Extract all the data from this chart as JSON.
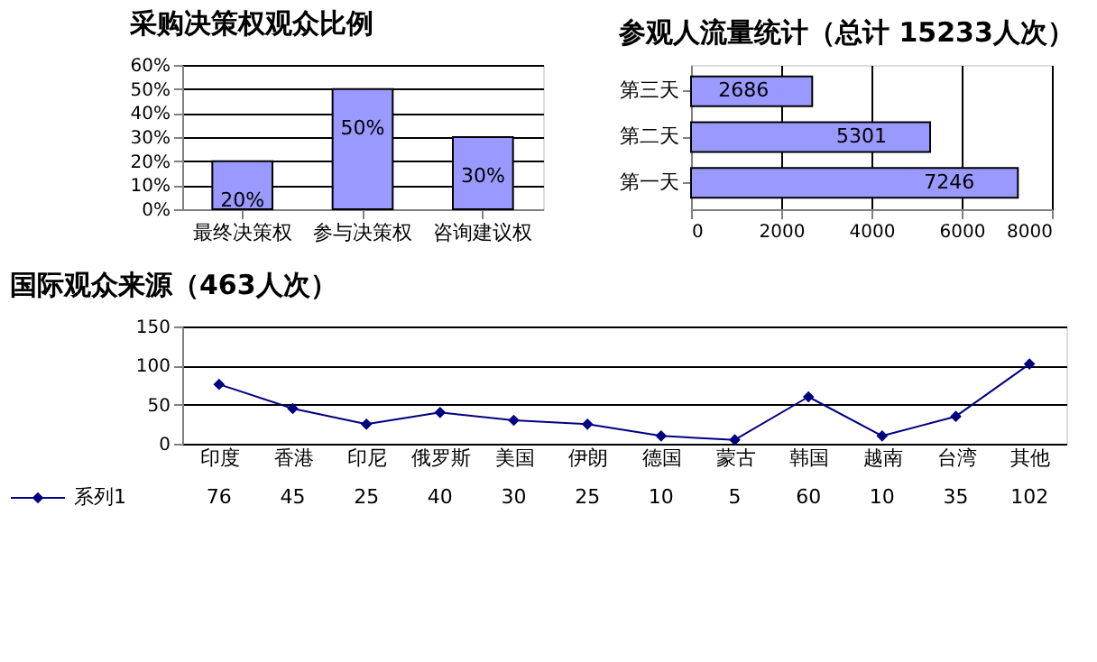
{
  "chart_data": [
    {
      "type": "bar",
      "title": "采购决策权观众比例",
      "categories": [
        "最终决策权",
        "参与决策权",
        "咨询建议权"
      ],
      "values": [
        20,
        50,
        30
      ],
      "color": "#9999ff",
      "value_labels": [
        "20%",
        "50%",
        "30%"
      ],
      "ylim": [
        0,
        60
      ],
      "yticks": [
        {
          "value": 0,
          "label": "0%"
        },
        {
          "value": 10,
          "label": "10%"
        },
        {
          "value": 20,
          "label": "20%"
        },
        {
          "value": 30,
          "label": "30%"
        },
        {
          "value": 40,
          "label": "40%"
        },
        {
          "value": 50,
          "label": "50%"
        },
        {
          "value": 60,
          "label": "60%"
        }
      ],
      "grid": "y"
    },
    {
      "type": "bar",
      "orientation": "horizontal",
      "title": "参观人流量统计（总计 15233人次）",
      "categories": [
        "第三天",
        "第二天",
        "第一天"
      ],
      "values": [
        2686,
        5301,
        7246
      ],
      "color": "#9999ff",
      "xlim": [
        0,
        8000
      ],
      "xticks": [
        0,
        2000,
        4000,
        6000,
        8000
      ],
      "grid": "x",
      "data_labels": true
    },
    {
      "type": "line",
      "title": "国际观众来源（463人次）",
      "categories": [
        "印度",
        "香港",
        "印尼",
        "俄罗斯",
        "美国",
        "伊朗",
        "德国",
        "蒙古",
        "韩国",
        "越南",
        "台湾",
        "其他"
      ],
      "series": [
        {
          "name": "系列1",
          "color": "#000080",
          "values": [
            76,
            45,
            25,
            40,
            30,
            25,
            10,
            5,
            60,
            10,
            35,
            102
          ]
        }
      ],
      "ylim": [
        0,
        150
      ],
      "yticks": [
        0,
        50,
        100,
        150
      ],
      "grid": "y",
      "marker": "diamond",
      "data_labels": true,
      "legend": "bottom left"
    }
  ]
}
